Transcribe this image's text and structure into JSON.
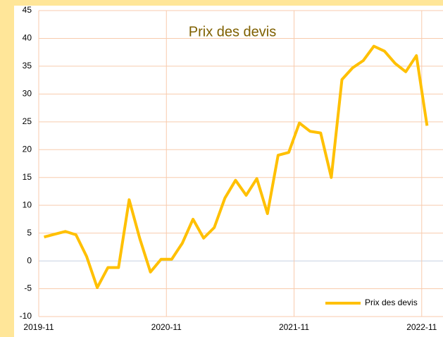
{
  "chart_data": {
    "type": "line",
    "title": "Prix des devis",
    "x": [
      0.5,
      1.5,
      2.5,
      3.5,
      4.5,
      5.5,
      6.5,
      7.5,
      8.5,
      9.5,
      10.5,
      11.5,
      12.5,
      13.5,
      14.5,
      15.5,
      16.5,
      17.5,
      18.5,
      19.5,
      20.5,
      21.5,
      22.5,
      23.5,
      24.5,
      25.5,
      26.5,
      27.5,
      28.5,
      29.5,
      30.5,
      31.5,
      32.5,
      33.5,
      34.5,
      35.5,
      36.5
    ],
    "series": [
      {
        "name": "Prix des devis",
        "color": "#ffc000",
        "values": [
          4.3,
          4.8,
          5.3,
          4.7,
          0.8,
          -4.8,
          -1.2,
          -1.2,
          11,
          4,
          -2,
          0.3,
          0.3,
          3.2,
          7.5,
          4.1,
          6,
          11.3,
          14.5,
          11.8,
          14.8,
          8.5,
          19,
          19.5,
          24.8,
          23.3,
          23,
          15,
          32.6,
          34.7,
          36,
          38.6,
          37.7,
          35.5,
          34,
          36.9,
          24.3
        ]
      }
    ],
    "xlim": [
      0,
      38
    ],
    "xticks": [
      {
        "value": 0,
        "label": "2019-11"
      },
      {
        "value": 12,
        "label": "2020-11"
      },
      {
        "value": 24,
        "label": "2021-11"
      },
      {
        "value": 36,
        "label": "2022-11"
      }
    ],
    "ylim": [
      -10,
      45
    ],
    "yticks": [
      -10,
      -5,
      0,
      5,
      10,
      15,
      20,
      25,
      30,
      35,
      40,
      45
    ],
    "grid": true,
    "legend": "lower right"
  }
}
